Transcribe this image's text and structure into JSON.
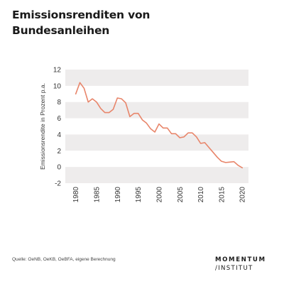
{
  "header": {
    "title_line1": "Emissionsrenditen von",
    "title_line2": "Bundesanleihen"
  },
  "footer": {
    "source": "Quelle: OeNB, OeKB, OeBFA, eigene Berechnung",
    "logo_line1": "MOMENTUM",
    "logo_line2": "INSTITUT"
  },
  "colors": {
    "line": "#e8856a",
    "band": "#eeecec",
    "text": "#333333"
  },
  "chart_data": {
    "type": "line",
    "title": "Emissionsrenditen von Bundesanleihen",
    "xlabel": "",
    "ylabel": "Emissionsrendite in Prozent p.a.",
    "xlim": [
      1977.5,
      2021.5
    ],
    "ylim": [
      -2,
      12
    ],
    "yticks": [
      12,
      10,
      8,
      6,
      4,
      2,
      0,
      -2
    ],
    "xticks": [
      1980,
      1985,
      1990,
      1995,
      2000,
      2005,
      2010,
      2015,
      2020
    ],
    "grid": "alternating horizontal bands",
    "series": [
      {
        "x": [
          1980,
          1981,
          1982,
          1983,
          1984,
          1985,
          1986,
          1987,
          1988,
          1989,
          1990,
          1991,
          1992,
          1993,
          1994,
          1995,
          1996,
          1997,
          1998,
          1999,
          2000,
          2001,
          2002,
          2003,
          2004,
          2005,
          2006,
          2007,
          2008,
          2009,
          2010,
          2011,
          2012,
          2013,
          2014,
          2015,
          2016,
          2017,
          2018,
          2019,
          2020
        ],
        "values": [
          9.0,
          10.4,
          9.7,
          8.0,
          8.4,
          8.0,
          7.2,
          6.7,
          6.7,
          7.1,
          8.5,
          8.4,
          7.9,
          6.2,
          6.6,
          6.6,
          5.8,
          5.4,
          4.7,
          4.3,
          5.3,
          4.8,
          4.8,
          4.1,
          4.1,
          3.6,
          3.7,
          4.2,
          4.2,
          3.7,
          2.9,
          3.0,
          2.4,
          1.8,
          1.2,
          0.7,
          0.55,
          0.6,
          0.65,
          0.2,
          -0.1
        ]
      }
    ]
  }
}
